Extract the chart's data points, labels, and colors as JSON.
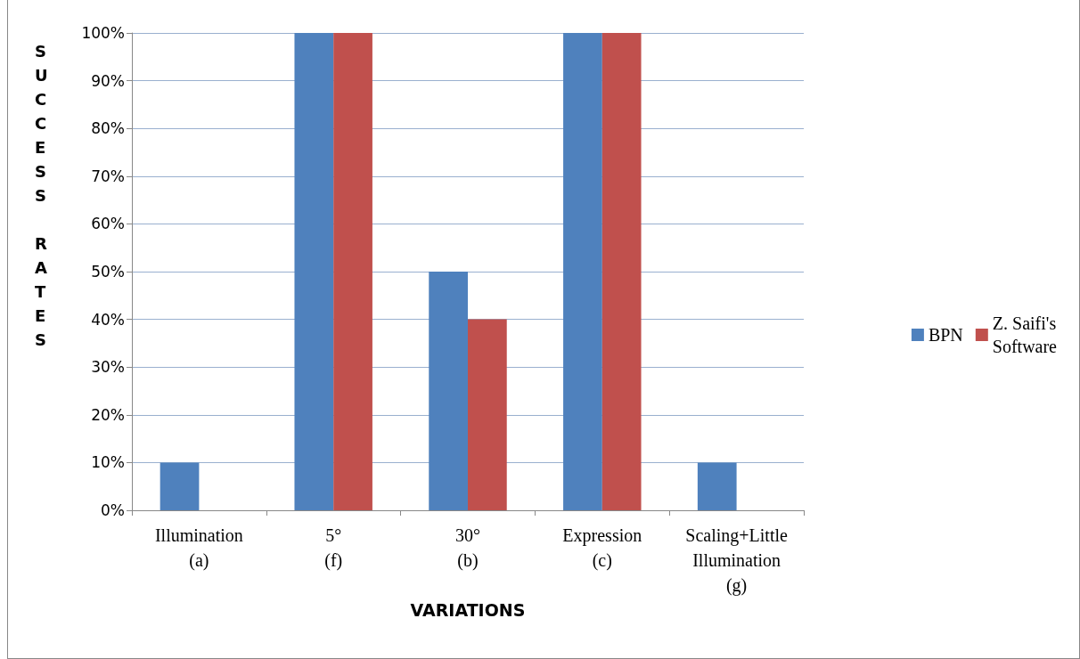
{
  "chart_data": {
    "type": "bar",
    "xlabel": "VARIATIONS",
    "ylabel": "SUCCESS RATES",
    "categories": [
      "Illumination\n(a)",
      "5°\n(f)",
      "30°\n(b)",
      "Expression\n(c)",
      "Scaling+Little\nIllumination\n(g)"
    ],
    "series": [
      {
        "name": "BPN",
        "color": "#4f81bd",
        "values": [
          10,
          100,
          50,
          100,
          10
        ]
      },
      {
        "name": "Z. Saifi's\nSoftware",
        "color": "#c0504d",
        "values": [
          0,
          100,
          40,
          100,
          0
        ]
      }
    ],
    "ylim": [
      0,
      100
    ],
    "yticks": [
      {
        "value": 0,
        "label": "0%"
      },
      {
        "value": 10,
        "label": "10%"
      },
      {
        "value": 20,
        "label": "20%"
      },
      {
        "value": 30,
        "label": "30%"
      },
      {
        "value": 40,
        "label": "40%"
      },
      {
        "value": 50,
        "label": "50%"
      },
      {
        "value": 60,
        "label": "60%"
      },
      {
        "value": 70,
        "label": "70%"
      },
      {
        "value": 80,
        "label": "80%"
      },
      {
        "value": 90,
        "label": "90%"
      },
      {
        "value": 100,
        "label": "100%"
      }
    ],
    "grid": "y",
    "legend": "right"
  }
}
